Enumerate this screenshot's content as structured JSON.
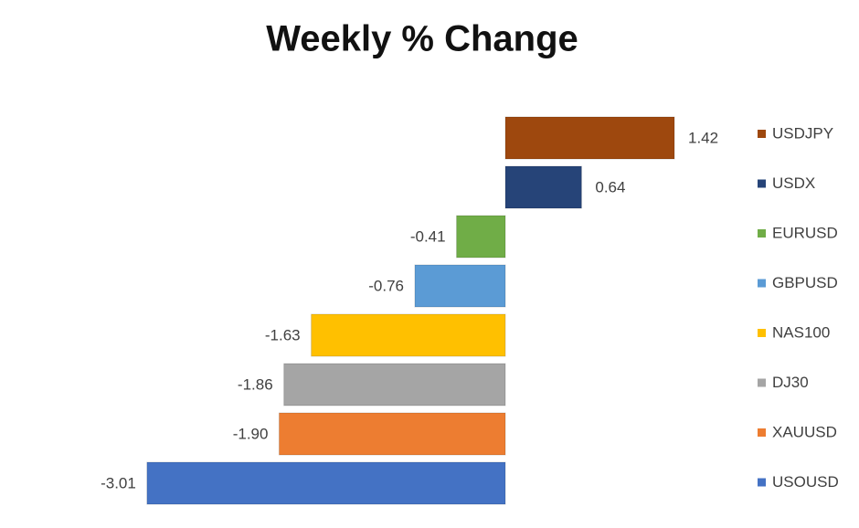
{
  "chart_data": {
    "type": "bar",
    "orientation": "horizontal",
    "title": "Weekly % Change",
    "categories": [
      "USDJPY",
      "USDX",
      "EURUSD",
      "GBPUSD",
      "NAS100",
      "DJ30",
      "XAUUSD",
      "USOUSD"
    ],
    "values": [
      1.42,
      0.64,
      -0.41,
      -0.76,
      -1.63,
      -1.86,
      -1.9,
      -3.01
    ],
    "value_labels": [
      "1.42",
      "0.64",
      "-0.41",
      "-0.76",
      "-1.63",
      "-1.86",
      "-1.90",
      "-3.01"
    ],
    "colors": [
      "#9e480e",
      "#264478",
      "#70ad47",
      "#5b9bd5",
      "#ffc000",
      "#a5a5a5",
      "#ed7d31",
      "#4472c4"
    ],
    "legend": "right"
  }
}
